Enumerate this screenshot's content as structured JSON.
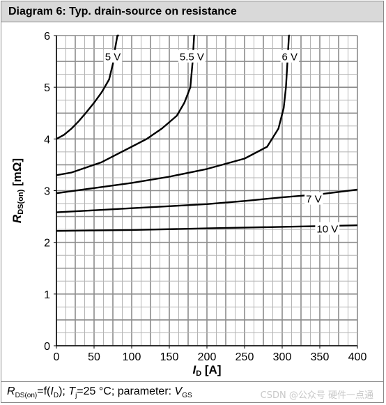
{
  "title": "Diagram 6: Typ. drain-source on resistance",
  "footer": {
    "r_main": "R",
    "r_sub": "DS(on)",
    "mid1": "=f(",
    "i_main": "I",
    "i_sub": "D",
    "mid2": "); ",
    "t_main": "T",
    "t_sub": "j",
    "mid3": "=25 °C; parameter: ",
    "v_main": "V",
    "v_sub": "GS"
  },
  "watermark": "CSDN @公众号 硬件一点通",
  "chart_data": {
    "type": "line",
    "xlabel_main": "I",
    "xlabel_sub": "D",
    "xlabel_unit": " [A]",
    "ylabel_main": "R",
    "ylabel_sub": "DS(on)",
    "ylabel_unit": "  [mΩ]",
    "xlim": [
      0,
      400
    ],
    "ylim": [
      0,
      6
    ],
    "xticks": [
      0,
      50,
      100,
      150,
      200,
      250,
      300,
      350,
      400
    ],
    "yticks": [
      0,
      1,
      2,
      3,
      4,
      5,
      6
    ],
    "grid": true,
    "series": [
      {
        "name": "5 V",
        "label_at": [
          75,
          5.6
        ],
        "points": [
          [
            0,
            4.0
          ],
          [
            10,
            4.08
          ],
          [
            20,
            4.2
          ],
          [
            30,
            4.35
          ],
          [
            40,
            4.52
          ],
          [
            50,
            4.7
          ],
          [
            60,
            4.9
          ],
          [
            70,
            5.15
          ],
          [
            75,
            5.45
          ],
          [
            78,
            5.75
          ],
          [
            81,
            6.0
          ],
          [
            83,
            6.1
          ]
        ]
      },
      {
        "name": "5.5 V",
        "label_at": [
          180,
          5.6
        ],
        "points": [
          [
            0,
            3.3
          ],
          [
            20,
            3.35
          ],
          [
            40,
            3.45
          ],
          [
            60,
            3.55
          ],
          [
            80,
            3.7
          ],
          [
            100,
            3.85
          ],
          [
            120,
            4.0
          ],
          [
            140,
            4.2
          ],
          [
            160,
            4.45
          ],
          [
            170,
            4.7
          ],
          [
            178,
            5.0
          ],
          [
            181,
            5.5
          ],
          [
            183,
            6.0
          ],
          [
            184,
            6.1
          ]
        ]
      },
      {
        "name": "6 V",
        "label_at": [
          310,
          5.6
        ],
        "points": [
          [
            0,
            2.95
          ],
          [
            50,
            3.05
          ],
          [
            100,
            3.15
          ],
          [
            150,
            3.27
          ],
          [
            200,
            3.42
          ],
          [
            250,
            3.62
          ],
          [
            280,
            3.85
          ],
          [
            295,
            4.2
          ],
          [
            302,
            4.6
          ],
          [
            305,
            5.0
          ],
          [
            307,
            5.5
          ],
          [
            309,
            6.0
          ],
          [
            310,
            6.1
          ]
        ]
      },
      {
        "name": "7 V",
        "label_at": [
          342,
          2.85
        ],
        "points": [
          [
            0,
            2.58
          ],
          [
            50,
            2.62
          ],
          [
            100,
            2.66
          ],
          [
            150,
            2.7
          ],
          [
            200,
            2.74
          ],
          [
            250,
            2.8
          ],
          [
            300,
            2.87
          ],
          [
            350,
            2.93
          ],
          [
            400,
            3.02
          ]
        ]
      },
      {
        "name": "10 V",
        "label_at": [
          360,
          2.27
        ],
        "points": [
          [
            0,
            2.22
          ],
          [
            100,
            2.24
          ],
          [
            200,
            2.27
          ],
          [
            300,
            2.3
          ],
          [
            400,
            2.33
          ]
        ]
      }
    ]
  }
}
